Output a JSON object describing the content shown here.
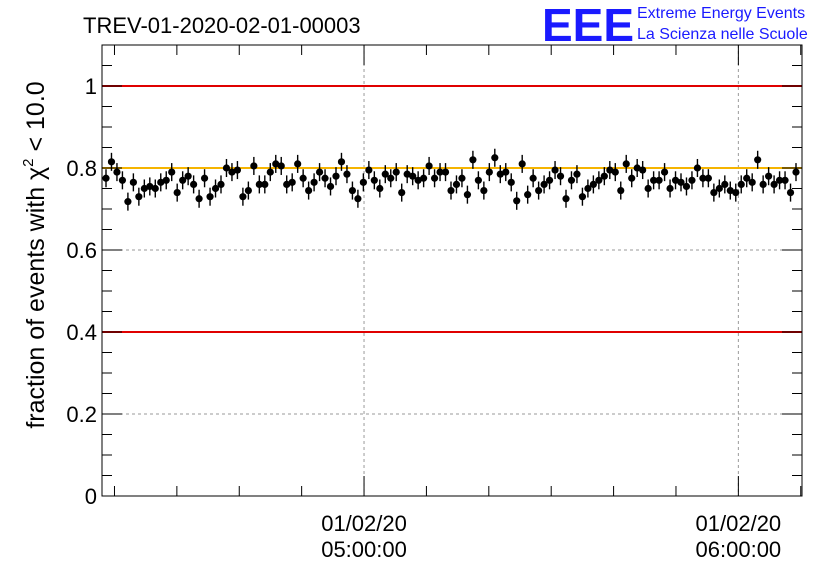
{
  "chart_data": {
    "type": "scatter",
    "title": "TREV-01-2020-02-01-00003",
    "ylabel_prefix": "fraction of events with ",
    "ylabel_symbol": "χ",
    "ylabel_sup": "2",
    "ylabel_suffix": " < 10.0",
    "ylim": [
      0,
      1.1
    ],
    "y_ticks": [
      "0",
      "0.2",
      "0.4",
      "0.6",
      "0.8",
      "1"
    ],
    "y_tick_values": [
      0,
      0.2,
      0.4,
      0.6,
      0.8,
      1.0
    ],
    "x_range_hours": [
      4.3,
      6.17
    ],
    "x_ticks": [
      {
        "hour": 5.0,
        "date": "01/02/20",
        "time": "05:00:00"
      },
      {
        "hour": 6.0,
        "date": "01/02/20",
        "time": "06:00:00"
      }
    ],
    "grid": true,
    "reference_lines": [
      {
        "y": 1.0,
        "color": "#e00000"
      },
      {
        "y": 0.4,
        "color": "#e00000"
      },
      {
        "y": 0.8,
        "color": "#f5b400"
      }
    ],
    "error": 0.022,
    "series": [
      {
        "marker_color": "#000000",
        "values": [
          0.775,
          0.815,
          0.79,
          0.77,
          0.718,
          0.765,
          0.73,
          0.75,
          0.755,
          0.75,
          0.765,
          0.77,
          0.79,
          0.74,
          0.77,
          0.78,
          0.76,
          0.725,
          0.775,
          0.73,
          0.75,
          0.76,
          0.8,
          0.79,
          0.795,
          0.73,
          0.745,
          0.805,
          0.76,
          0.76,
          0.79,
          0.81,
          0.805,
          0.76,
          0.765,
          0.81,
          0.775,
          0.745,
          0.765,
          0.79,
          0.775,
          0.755,
          0.78,
          0.815,
          0.785,
          0.745,
          0.725,
          0.765,
          0.795,
          0.77,
          0.75,
          0.785,
          0.775,
          0.79,
          0.74,
          0.785,
          0.78,
          0.77,
          0.775,
          0.805,
          0.775,
          0.79,
          0.79,
          0.745,
          0.76,
          0.775,
          0.735,
          0.82,
          0.77,
          0.745,
          0.79,
          0.825,
          0.785,
          0.79,
          0.765,
          0.72,
          0.81,
          0.735,
          0.775,
          0.745,
          0.76,
          0.77,
          0.795,
          0.78,
          0.725,
          0.77,
          0.785,
          0.73,
          0.75,
          0.76,
          0.77,
          0.78,
          0.795,
          0.79,
          0.745,
          0.81,
          0.775,
          0.8,
          0.795,
          0.75,
          0.77,
          0.77,
          0.79,
          0.75,
          0.77,
          0.765,
          0.755,
          0.77,
          0.8,
          0.775,
          0.775,
          0.74,
          0.75,
          0.76,
          0.745,
          0.74,
          0.76,
          0.775,
          0.765,
          0.82,
          0.76,
          0.78,
          0.76,
          0.77,
          0.77,
          0.74,
          0.79
        ]
      }
    ]
  },
  "logo": {
    "mark": "EEE",
    "line1": "Extreme Energy Events",
    "line2": "La Scienza nelle Scuole"
  }
}
